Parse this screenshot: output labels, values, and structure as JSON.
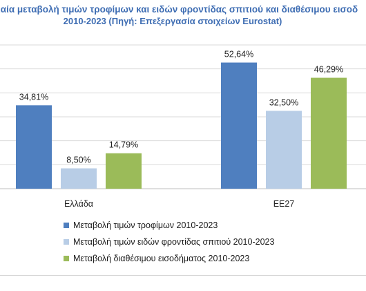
{
  "chart_data": {
    "type": "bar",
    "title_line1": "στιαία μεταβολή τιμών τροφίμων και ειδών φροντίδας σπιτιού και διαθέσιμου εισοδ",
    "title_line2": "2010-2023 (Πηγή: Επεξεργασία στοιχείων Eurostat)",
    "categories": [
      "Ελλάδα",
      "ΕΕ27"
    ],
    "series": [
      {
        "name": "Μεταβολή τιμών τροφίμων 2010-2023",
        "values": [
          34.81,
          52.64
        ],
        "labels": [
          "34,81%",
          "52,64%"
        ],
        "color": "#4f7fbf"
      },
      {
        "name": "Μεταβολή τιμών ειδών φροντίδας σπιτιού 2010-2023",
        "values": [
          8.5,
          32.5
        ],
        "labels": [
          "8,50%",
          "32,50%"
        ],
        "color": "#b8cde6"
      },
      {
        "name": "Μεταβολή διαθέσιμου εισοδήματος 2010-2023",
        "values": [
          14.79,
          46.29
        ],
        "labels": [
          "14,79%",
          "46,29%"
        ],
        "color": "#9bbb59"
      }
    ],
    "ylim": [
      0,
      60
    ],
    "grid": true,
    "legend_position": "bottom"
  }
}
